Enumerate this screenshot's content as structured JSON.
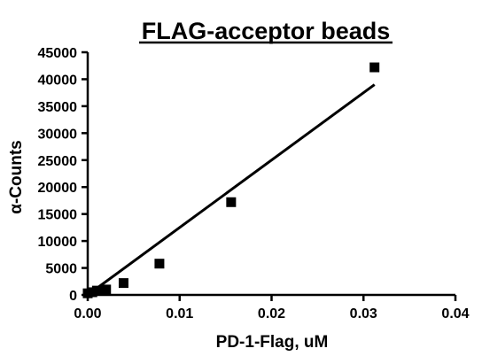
{
  "chart_data": {
    "type": "scatter",
    "title": "FLAG-acceptor beads",
    "xlabel": "PD-1-Flag, uM",
    "ylabel": "α-Counts",
    "xlim": [
      0,
      0.04
    ],
    "ylim": [
      0,
      45000
    ],
    "x_ticks": [
      "0.00",
      "0.01",
      "0.02",
      "0.03",
      "0.04"
    ],
    "y_ticks": [
      "0",
      "5000",
      "10000",
      "15000",
      "20000",
      "25000",
      "30000",
      "35000",
      "40000",
      "45000"
    ],
    "grid": false,
    "legend": "none",
    "series": [
      {
        "marker": "square",
        "x": [
          0.0,
          0.0005,
          0.001,
          0.002,
          0.0039,
          0.0078,
          0.0156,
          0.0312
        ],
        "y": [
          300,
          500,
          800,
          1000,
          2200,
          5800,
          17200,
          42200
        ]
      }
    ],
    "fit_line": {
      "x": [
        0.0,
        0.0312
      ],
      "y": [
        0,
        39000
      ]
    }
  }
}
